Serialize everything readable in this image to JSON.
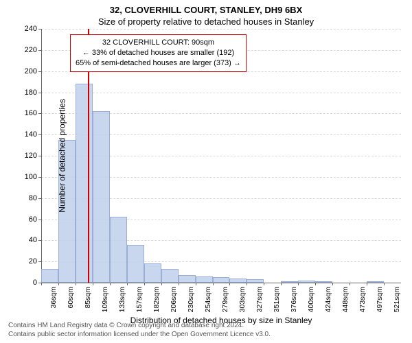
{
  "header": {
    "title": "32, CLOVERHILL COURT, STANLEY, DH9 6BX",
    "subtitle": "Size of property relative to detached houses in Stanley"
  },
  "chart": {
    "type": "bar",
    "y_axis_title": "Number of detached properties",
    "x_axis_title": "Distribution of detached houses by size in Stanley",
    "ylim": [
      0,
      240
    ],
    "ytick_step": 20,
    "xticks": [
      "36sqm",
      "60sqm",
      "85sqm",
      "109sqm",
      "133sqm",
      "157sqm",
      "182sqm",
      "206sqm",
      "230sqm",
      "254sqm",
      "279sqm",
      "303sqm",
      "327sqm",
      "351sqm",
      "376sqm",
      "400sqm",
      "424sqm",
      "448sqm",
      "473sqm",
      "497sqm",
      "521sqm"
    ],
    "values": [
      13,
      135,
      188,
      162,
      62,
      36,
      18,
      13,
      7,
      6,
      5,
      4,
      3,
      0,
      1,
      2,
      1,
      0,
      0,
      1,
      0
    ],
    "bar_fill": "#c2d1ed",
    "bar_border": "#9ab0da",
    "background_color": "#ffffff",
    "grid_color": "rgba(0,0,0,0.15)",
    "marker": {
      "position_sqm": 90,
      "color": "#cc0000"
    },
    "annotation": {
      "line1": "32 CLOVERHILL COURT: 90sqm",
      "line2": "← 33% of detached houses are smaller (192)",
      "line3": "65% of semi-detached houses are larger (373) →"
    }
  },
  "footer": {
    "line1": "Contains HM Land Registry data © Crown copyright and database right 2024.",
    "line2": "Contains public sector information licensed under the Open Government Licence v3.0."
  }
}
